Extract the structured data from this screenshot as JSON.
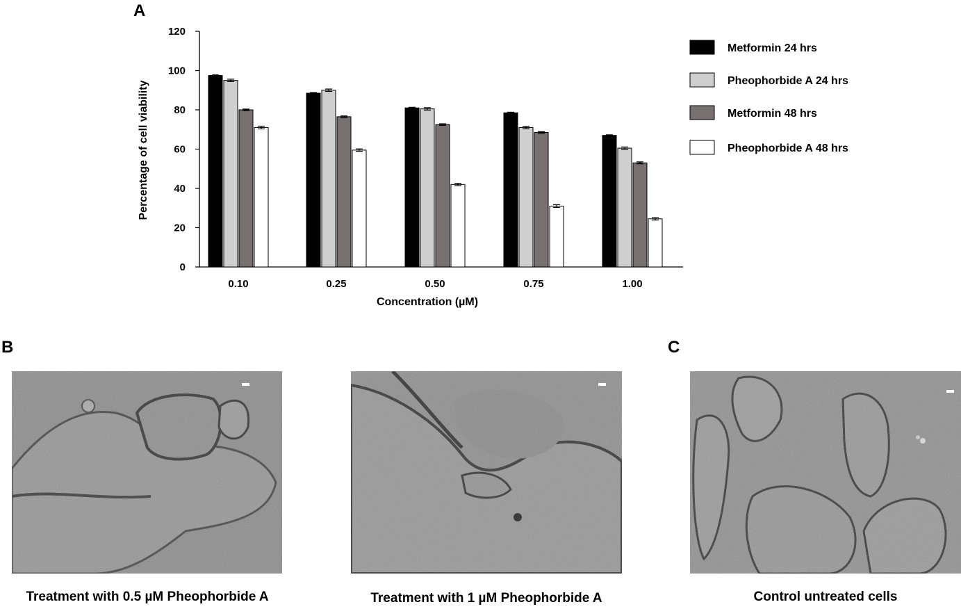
{
  "panels": {
    "a": "A",
    "b": "B",
    "c": "C"
  },
  "chart_data": {
    "type": "bar",
    "title": "",
    "xlabel": "Concentration (µM)",
    "ylabel": "Percentage of cell viability",
    "ylim": [
      0,
      120
    ],
    "yticks": [
      0,
      20,
      40,
      60,
      80,
      100,
      120
    ],
    "categories": [
      "0.10",
      "0.25",
      "0.50",
      "0.75",
      "1.00"
    ],
    "legend_position": "right",
    "grid": false,
    "series": [
      {
        "name": "Metformin 24 hrs",
        "color": "#000000",
        "values": [
          97.5,
          88.5,
          81,
          78.5,
          67
        ],
        "errors": [
          0.3,
          0.3,
          0.3,
          0.3,
          0.3
        ]
      },
      {
        "name": "Pheophorbide A 24 hrs",
        "color": "#cfcfcf",
        "values": [
          95,
          90,
          80.5,
          71,
          60.5
        ],
        "errors": [
          0.6,
          0.6,
          0.6,
          0.6,
          0.6
        ]
      },
      {
        "name": "Metformin 48 hrs",
        "color": "#767070",
        "values": [
          80,
          76.5,
          72.5,
          68.5,
          53
        ],
        "errors": [
          0.4,
          0.4,
          0.4,
          0.4,
          0.5
        ]
      },
      {
        "name": "Pheophorbide A 48 hrs",
        "color": "#ffffff",
        "values": [
          71,
          59.5,
          42,
          31,
          24.5
        ],
        "errors": [
          0.7,
          0.6,
          0.6,
          0.7,
          0.6
        ]
      }
    ]
  },
  "images": [
    {
      "caption": "Treatment with 0.5 µM Pheophorbide A"
    },
    {
      "caption": "Treatment with 1 µM Pheophorbide A"
    },
    {
      "caption": "Control untreated cells"
    }
  ]
}
